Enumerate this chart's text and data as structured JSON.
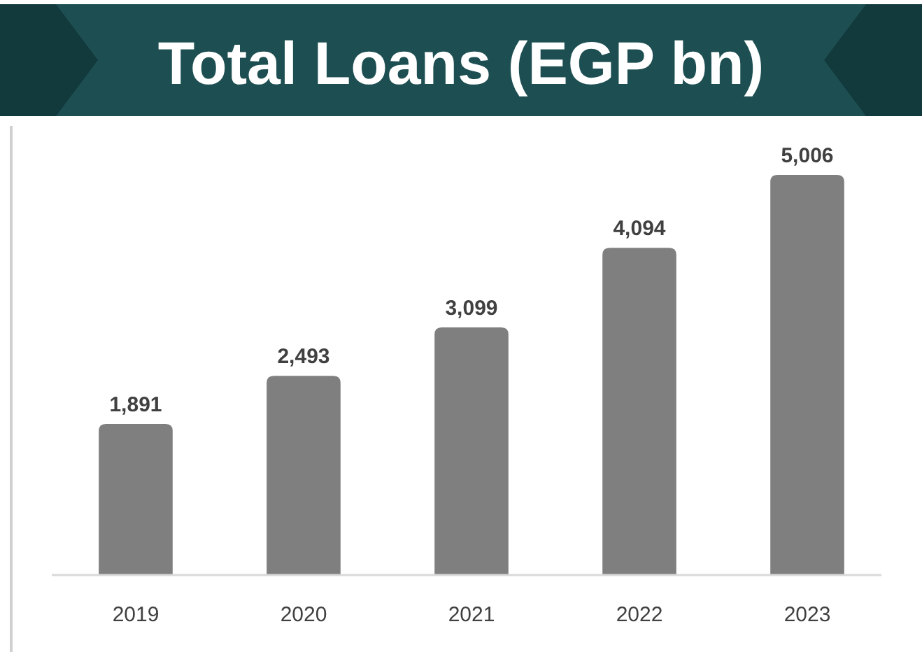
{
  "chart_data": {
    "type": "bar",
    "title": "Total Loans (EGP bn)",
    "categories": [
      "2019",
      "2020",
      "2021",
      "2022",
      "2023"
    ],
    "values": [
      1891,
      2493,
      3099,
      4094,
      5006
    ],
    "value_labels": [
      "1,891",
      "2,493",
      "3,099",
      "4,094",
      "5,006"
    ],
    "color": "#7f7f7f"
  }
}
